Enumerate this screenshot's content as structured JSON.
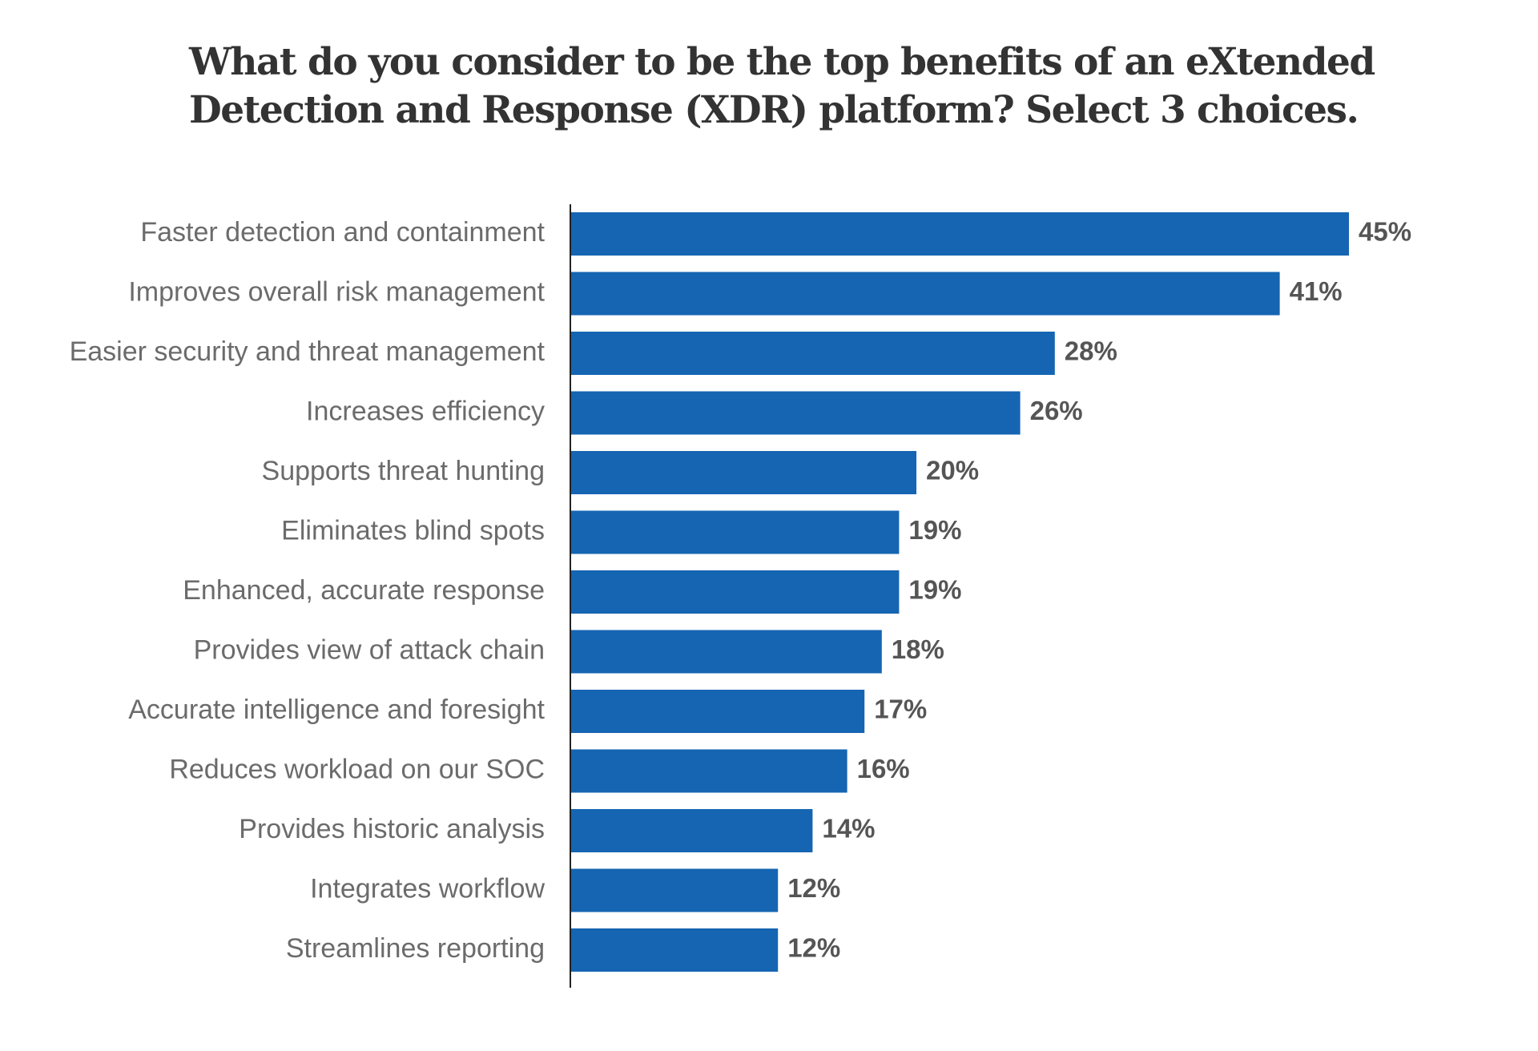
{
  "chart_data": {
    "type": "bar",
    "orientation": "horizontal",
    "title": "What do you consider to be the top benefits of an eXtended Detection and Response (XDR) platform? Select 3 choices.",
    "categories": [
      "Faster detection and containment",
      "Improves overall risk management",
      "Easier security and threat management",
      "Increases efficiency",
      "Supports threat hunting",
      "Eliminates blind spots",
      "Enhanced, accurate response",
      "Provides view of attack chain",
      "Accurate intelligence and foresight",
      "Reduces workload on our SOC",
      "Provides historic analysis",
      "Integrates workflow",
      "Streamlines reporting"
    ],
    "values": [
      45,
      41,
      28,
      26,
      20,
      19,
      19,
      18,
      17,
      16,
      14,
      12,
      12
    ],
    "value_labels": [
      "45%",
      "41%",
      "28%",
      "26%",
      "20%",
      "19%",
      "19%",
      "18%",
      "17%",
      "16%",
      "14%",
      "12%",
      "12%"
    ],
    "xlabel": "",
    "ylabel": "",
    "xlim": [
      0,
      45
    ],
    "grid": false,
    "legend": "none",
    "bar_color": "#1565b2",
    "axis_color": "#222222"
  }
}
